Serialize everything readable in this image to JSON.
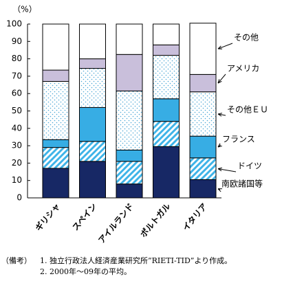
{
  "chart_data": {
    "type": "stacked-bar",
    "y_unit": "（%）",
    "categories": [
      "ギリシャ",
      "スペイン",
      "アイルランド",
      "ポルトガル",
      "イタリア"
    ],
    "series": [
      {
        "name": "南欧諸国等",
        "color": "#172865",
        "pattern": "solid",
        "values": [
          17,
          21,
          8,
          29.5,
          10.5
        ]
      },
      {
        "name": "ドイツ",
        "color": "#3fb4e8",
        "pattern": "hatch",
        "values": [
          12,
          11.5,
          13,
          14.5,
          12.5
        ]
      },
      {
        "name": "フランス",
        "color": "#37ade4",
        "pattern": "solid",
        "values": [
          4.5,
          19.5,
          6.5,
          13,
          12.5
        ]
      },
      {
        "name": "その他ＥＵ",
        "color": "#4aa6d6",
        "pattern": "dots",
        "values": [
          33.5,
          22.5,
          34,
          25,
          25.5
        ]
      },
      {
        "name": "アメリカ",
        "color": "#c9bfdb",
        "pattern": "solid",
        "values": [
          6.5,
          5.5,
          21,
          6,
          10
        ]
      },
      {
        "name": "その他",
        "color": "#ffffff",
        "pattern": "solid",
        "values": [
          26.5,
          20,
          17.5,
          12,
          29.5
        ]
      }
    ],
    "ylim": [
      0,
      100
    ],
    "yticks": [
      0,
      10,
      20,
      30,
      40,
      50,
      60,
      70,
      80,
      90,
      100
    ]
  },
  "notes_label": "（備考）",
  "notes": [
    "1.  独立行政法人経済産業研究所”RIETI-TID”より作成。",
    "2.  2000年～09年の平均。"
  ]
}
